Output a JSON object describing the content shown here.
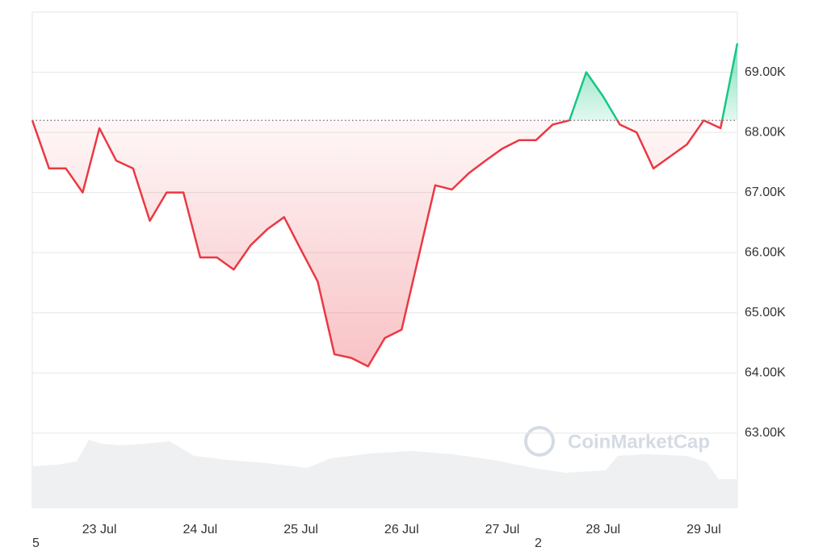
{
  "chart_data": {
    "type": "line",
    "categories": [
      null,
      null,
      null,
      null,
      "23 Jul",
      null,
      null,
      null,
      null,
      null,
      "24 Jul",
      null,
      null,
      null,
      null,
      null,
      "25 Jul",
      null,
      null,
      null,
      null,
      null,
      "26 Jul",
      null,
      null,
      null,
      null,
      null,
      "27 Jul",
      null,
      null,
      null,
      null,
      null,
      "28 Jul",
      null,
      null,
      null,
      null,
      null,
      "29 Jul",
      null,
      null
    ],
    "series": [
      {
        "values": [
          68200,
          67400,
          67400,
          67000,
          68070,
          67530,
          67400,
          66530,
          67000,
          67000,
          65920,
          65920,
          65720,
          66120,
          66390,
          66590,
          66050,
          65520,
          64310,
          64250,
          64110,
          64580,
          64720,
          65920,
          67120,
          67050,
          67320,
          67530,
          67730,
          67870,
          67870,
          68130,
          68200,
          69000,
          68600,
          68130,
          68000,
          67400,
          67600,
          67800,
          68200,
          68070,
          69480
        ]
      }
    ],
    "baseline": 68200,
    "color_above": "#16c784",
    "color_below": "#ea3943",
    "ylim": [
      61750,
      70000
    ],
    "yticks": [
      {
        "value": 63000,
        "label": "63.00K"
      },
      {
        "value": 64000,
        "label": "64.00K"
      },
      {
        "value": 65000,
        "label": "65.00K"
      },
      {
        "value": 66000,
        "label": "66.00K"
      },
      {
        "value": 67000,
        "label": "67.00K"
      },
      {
        "value": 68000,
        "label": "68.00K"
      },
      {
        "value": 69000,
        "label": "69.00K"
      }
    ],
    "grid": true,
    "watermark": "CoinMarketCap",
    "corner_labels": [
      "5",
      "2"
    ]
  }
}
